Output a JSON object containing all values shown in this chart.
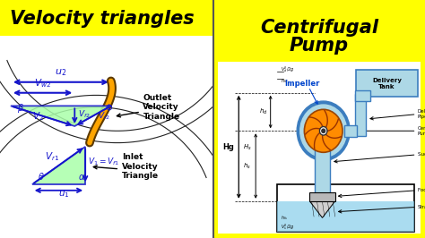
{
  "yellow_bg": "#FFFF00",
  "white_bg": "#FFFFFF",
  "left_title": "Velocity triangles",
  "right_title_line1": "Centrifugal",
  "right_title_line2": "Pump",
  "title_color": "#000000",
  "title_fontsize": 15,
  "arrow_color": "#1515CC",
  "triangle_fill": "#AAFFAA",
  "blade_dark": "#8B6000",
  "blade_light": "#FFA500",
  "pump_body": "#ADD8E6",
  "pump_edge": "#3B7DBF",
  "impeller_fill": "#FF8C00",
  "water_fill": "#87CEEB",
  "label_blue": "#1515CC",
  "label_black": "#000000",
  "arc_color": "#222222",
  "divider_color": "#333333"
}
